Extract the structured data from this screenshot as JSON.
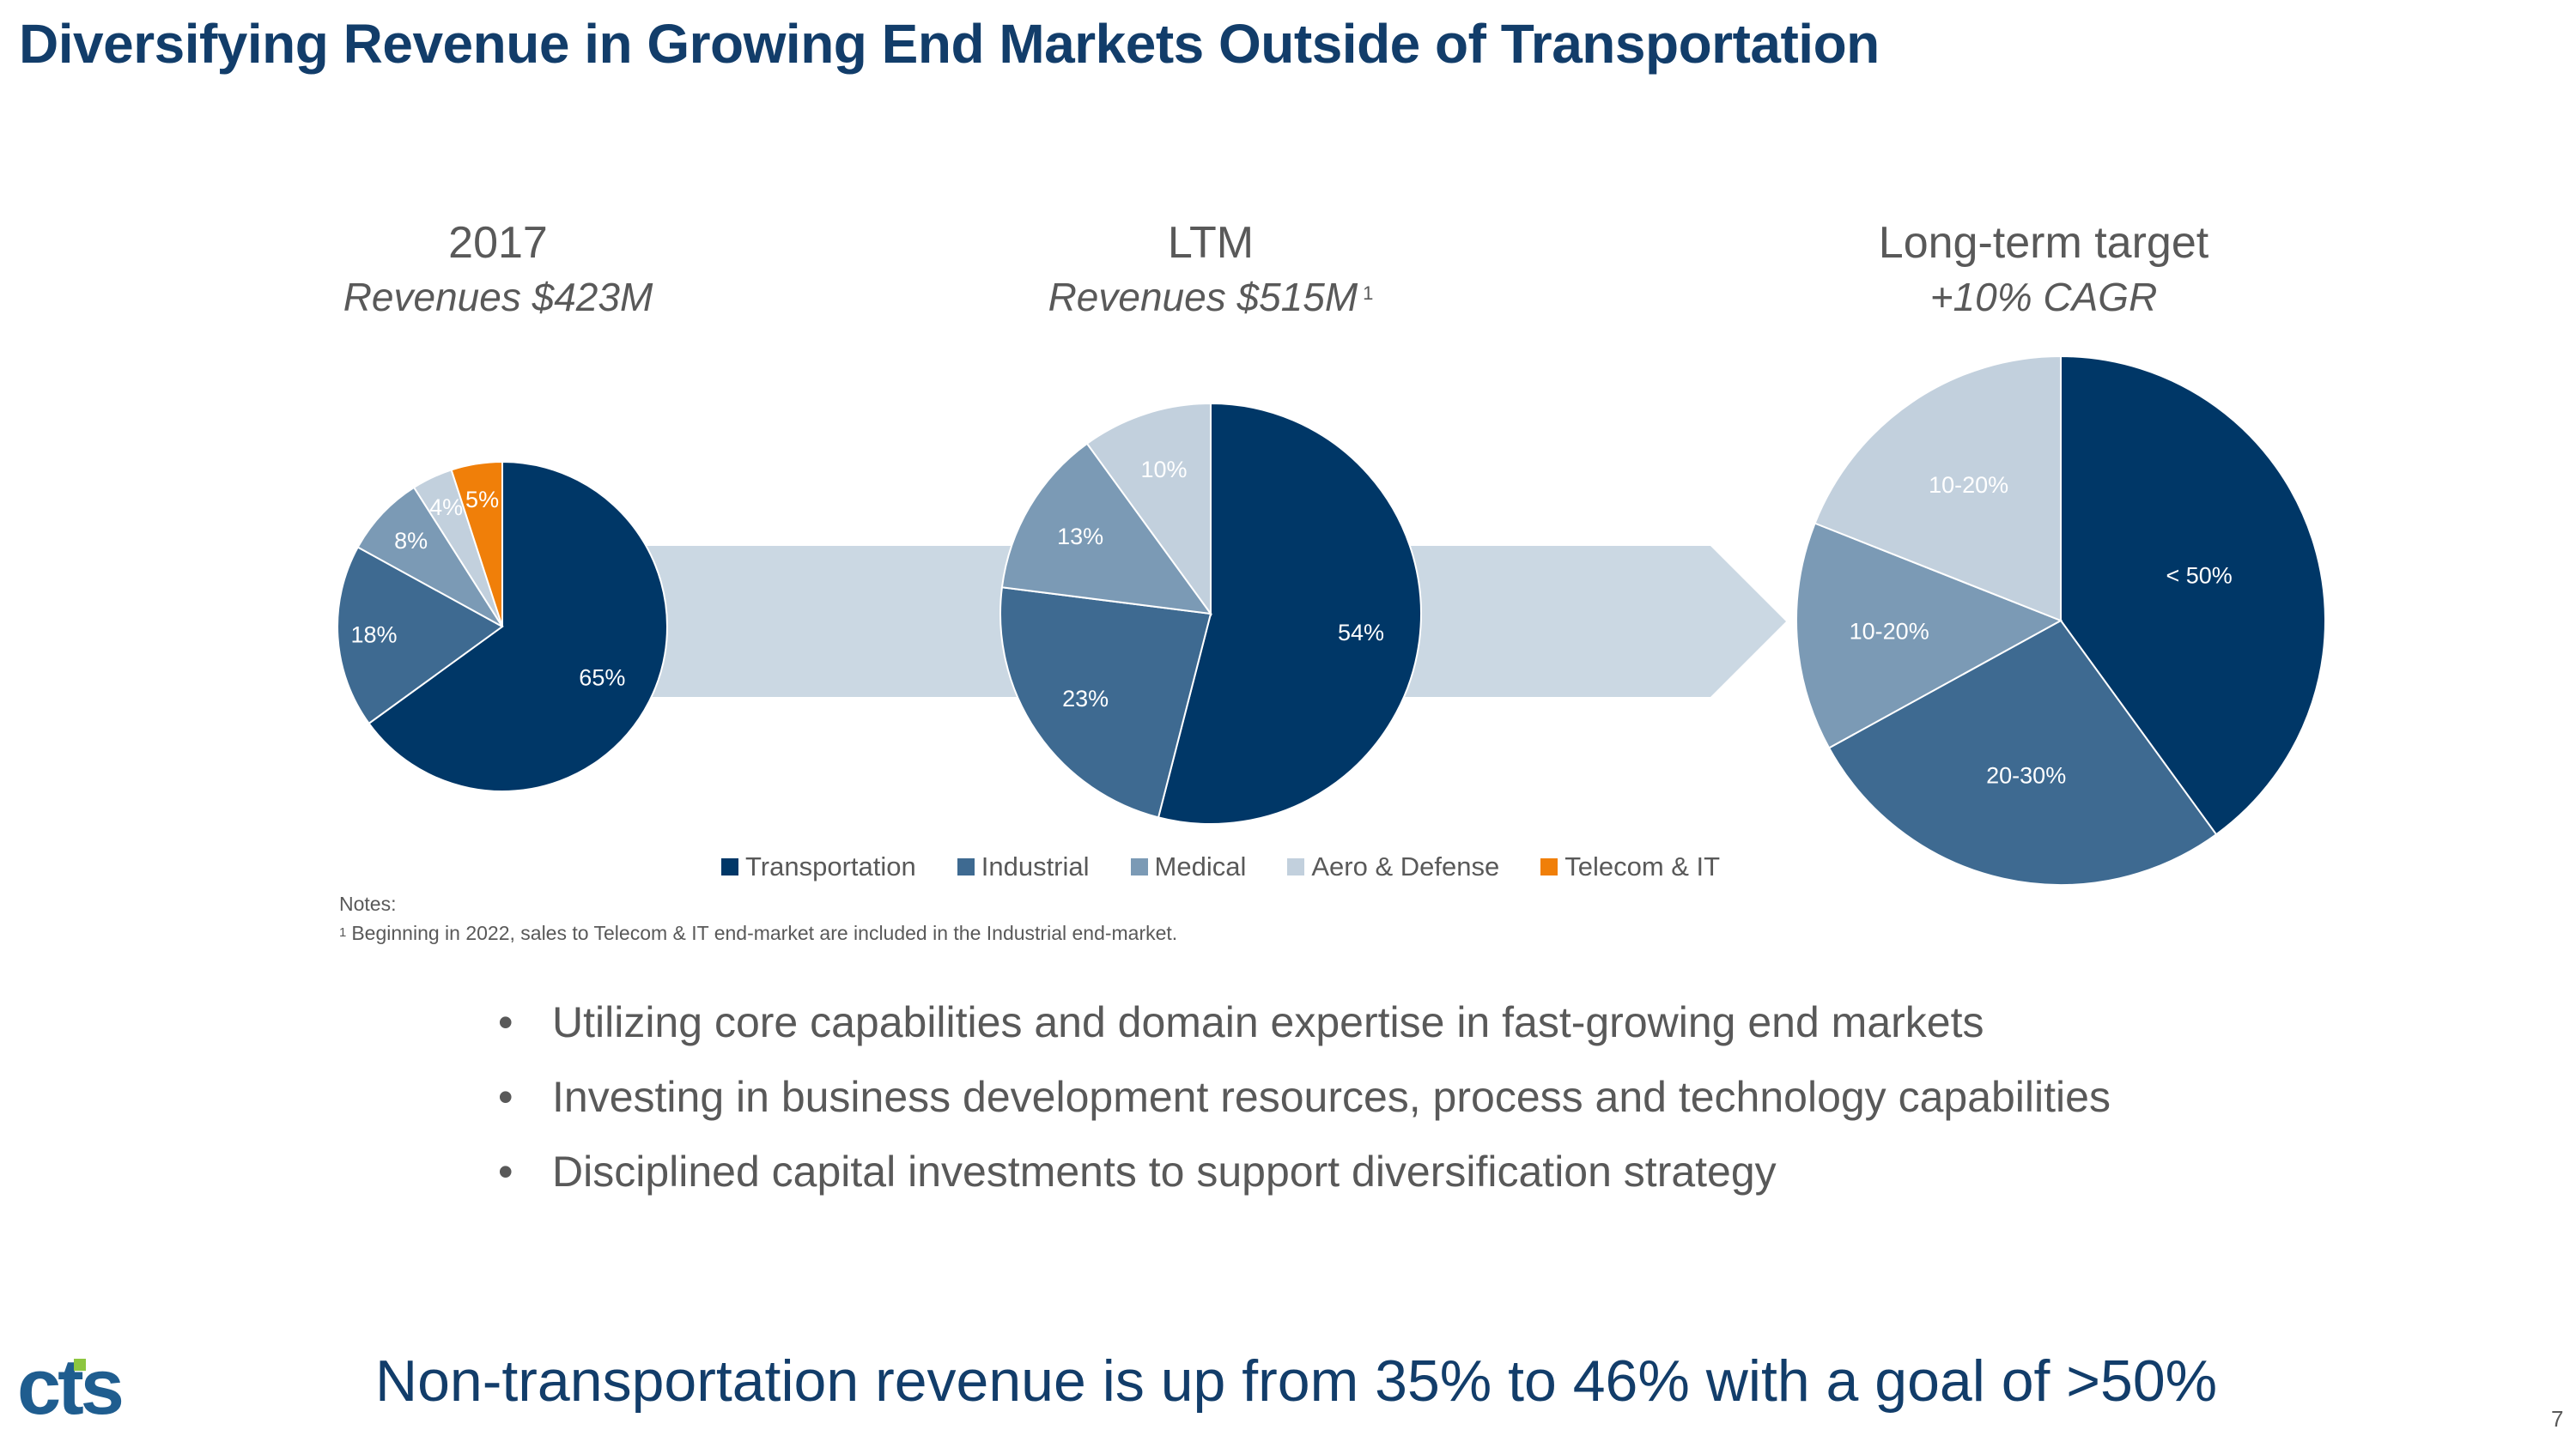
{
  "slide": {
    "title": "Diversifying Revenue in Growing End Markets Outside of Transportation",
    "bullets": [
      "Utilizing core capabilities and domain expertise in fast-growing end markets",
      "Investing in business development resources, process and technology capabilities",
      "Disciplined capital investments to support diversification strategy"
    ],
    "tagline": "Non-transportation revenue is up from 35% to 46% with a goal of >50%",
    "notes_heading": "Notes:",
    "footnote_marker": "1",
    "footnote": "Beginning in 2022, sales to Telecom & IT end-market are included in the Industrial end-market.",
    "page_number": "7",
    "logo_text": "cts",
    "bullet_glyph": "•"
  },
  "chart_data": [
    {
      "type": "pie",
      "title": "2017",
      "subtitle": "Revenues $423M",
      "series": [
        {
          "name": "Transportation",
          "value": 65,
          "label": "65%"
        },
        {
          "name": "Industrial",
          "value": 18,
          "label": "18%"
        },
        {
          "name": "Medical",
          "value": 8,
          "label": "8%"
        },
        {
          "name": "Aero & Defense",
          "value": 4,
          "label": "4%"
        },
        {
          "name": "Telecom & IT",
          "value": 5,
          "label": "5%"
        }
      ]
    },
    {
      "type": "pie",
      "title": "LTM",
      "subtitle": "Revenues $515M",
      "footnote_marker": "1",
      "series": [
        {
          "name": "Transportation",
          "value": 54,
          "label": "54%"
        },
        {
          "name": "Industrial",
          "value": 23,
          "label": "23%"
        },
        {
          "name": "Medical",
          "value": 13,
          "label": "13%"
        },
        {
          "name": "Aero & Defense",
          "value": 10,
          "label": "10%"
        }
      ]
    },
    {
      "type": "pie",
      "title": "Long-term target",
      "subtitle": "+10% CAGR",
      "series": [
        {
          "name": "Transportation",
          "value": 40,
          "label": "< 50%"
        },
        {
          "name": "Industrial",
          "value": 27,
          "label": "20-30%"
        },
        {
          "name": "Medical",
          "value": 14,
          "label": "10-20%"
        },
        {
          "name": "Aero & Defense",
          "value": 19,
          "label": "10-20%"
        }
      ]
    }
  ],
  "legend": [
    {
      "name": "Transportation",
      "color": "#003767"
    },
    {
      "name": "Industrial",
      "color": "#3e6a91"
    },
    {
      "name": "Medical",
      "color": "#7b9ab5"
    },
    {
      "name": "Aero & Defense",
      "color": "#c2d0dd"
    },
    {
      "name": "Telecom & IT",
      "color": "#f07f09"
    }
  ],
  "colors": {
    "title": "#123d6a",
    "text_gray": "#595959",
    "arrow": "#cbd8e3",
    "logo_blue": "#1f5d8f",
    "logo_green": "#8dc63f"
  }
}
